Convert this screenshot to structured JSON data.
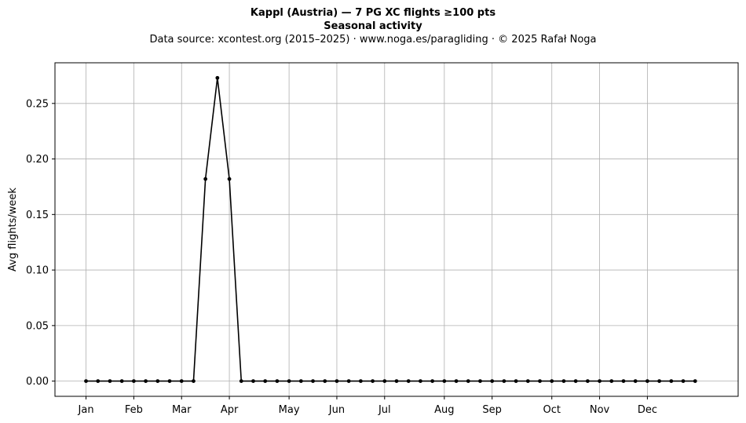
{
  "chart_data": {
    "type": "line",
    "title": "Kappl (Austria)  —  7 PG XC flights ≥100 pts",
    "subtitle": "Seasonal activity",
    "source_line": "Data source: xcontest.org (2015–2025)  ·  www.noga.es/paragliding  ·  © 2025 Rafał Noga",
    "xlabel": "",
    "ylabel": "Avg flights/week",
    "xlim": [
      -2.6,
      54.6
    ],
    "ylim": [
      -0.0137,
      0.2866
    ],
    "grid": true,
    "line_color": "#000000",
    "grid_color": "#b0b0b0",
    "x_ticks": [
      {
        "label": "Jan",
        "x": 0
      },
      {
        "label": "Feb",
        "x": 4
      },
      {
        "label": "Mar",
        "x": 8
      },
      {
        "label": "Apr",
        "x": 12
      },
      {
        "label": "May",
        "x": 17
      },
      {
        "label": "Jun",
        "x": 21
      },
      {
        "label": "Jul",
        "x": 25
      },
      {
        "label": "Aug",
        "x": 30
      },
      {
        "label": "Sep",
        "x": 34
      },
      {
        "label": "Oct",
        "x": 39
      },
      {
        "label": "Nov",
        "x": 43
      },
      {
        "label": "Dec",
        "x": 47
      }
    ],
    "y_ticks": [
      0.0,
      0.05,
      0.1,
      0.15,
      0.2,
      0.25
    ],
    "y_tick_labels": [
      "0.00",
      "0.05",
      "0.10",
      "0.15",
      "0.20",
      "0.25"
    ],
    "series": [
      {
        "x": [
          0,
          1,
          2,
          3,
          4,
          5,
          6,
          7,
          8,
          9,
          10,
          11,
          12,
          13,
          14,
          15,
          16,
          17,
          18,
          19,
          20,
          21,
          22,
          23,
          24,
          25,
          26,
          27,
          28,
          29,
          30,
          31,
          32,
          33,
          34,
          35,
          36,
          37,
          38,
          39,
          40,
          41,
          42,
          43,
          44,
          45,
          46,
          47,
          48,
          49,
          50,
          51
        ],
        "values": [
          0,
          0,
          0,
          0,
          0,
          0,
          0,
          0,
          0,
          0,
          0.182,
          0.273,
          0.182,
          0,
          0,
          0,
          0,
          0,
          0,
          0,
          0,
          0,
          0,
          0,
          0,
          0,
          0,
          0,
          0,
          0,
          0,
          0,
          0,
          0,
          0,
          0,
          0,
          0,
          0,
          0,
          0,
          0,
          0,
          0,
          0,
          0,
          0,
          0,
          0,
          0,
          0,
          0
        ]
      }
    ]
  }
}
